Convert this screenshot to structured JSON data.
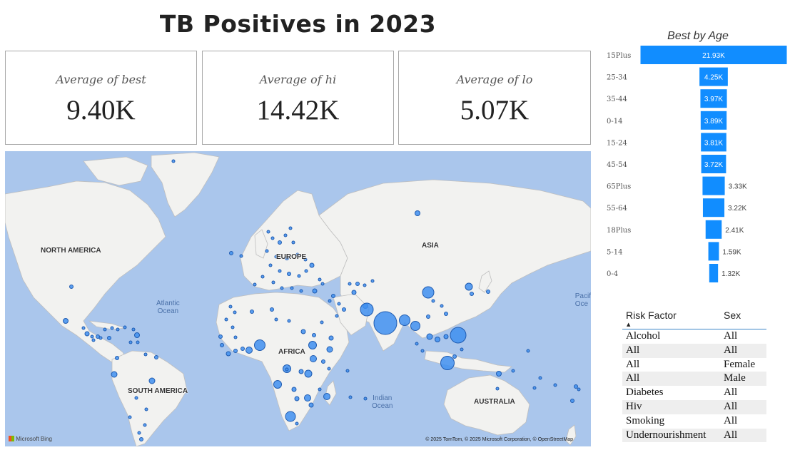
{
  "title": "TB Positives in 2023",
  "cards": [
    {
      "label": "Average of best",
      "value": "9.40K"
    },
    {
      "label": "Average of hi",
      "value": "14.42K"
    },
    {
      "label": "Average of lo",
      "value": "5.07K"
    }
  ],
  "map": {
    "continents": [
      "NORTH AMERICA",
      "EUROPE",
      "ASIA",
      "AFRICA",
      "SOUTH AMERICA",
      "AUSTRALIA"
    ],
    "oceans": [
      "Atlantic",
      "Ocean",
      "Indian",
      "Ocean",
      "Pacif",
      "Oce"
    ],
    "logo": "Microsoft Bing",
    "attribution": "© 2025 TomTom, © 2025 Microsoft Corporation, © OpenStreetMap",
    "bubble_color": "#3f8ff0"
  },
  "age_chart": {
    "title": "Best by Age",
    "bar_color": "#118dff",
    "categories": [
      "15Plus",
      "25-34",
      "35-44",
      "0-14",
      "15-24",
      "45-54",
      "65Plus",
      "55-64",
      "18Plus",
      "5-14",
      "0-4"
    ],
    "values": [
      21930,
      4250,
      3970,
      3890,
      3810,
      3720,
      3330,
      3220,
      2410,
      1590,
      1320
    ],
    "labels": [
      "21.93K",
      "4.25K",
      "3.97K",
      "3.89K",
      "3.81K",
      "3.72K",
      "3.33K",
      "3.22K",
      "2.41K",
      "1.59K",
      "1.32K"
    ]
  },
  "table": {
    "headers": [
      "Risk Factor",
      "Sex"
    ],
    "rows": [
      [
        "Alcohol",
        "All"
      ],
      [
        "All",
        "All"
      ],
      [
        "All",
        "Female"
      ],
      [
        "All",
        "Male"
      ],
      [
        "Diabetes",
        "All"
      ],
      [
        "Hiv",
        "All"
      ],
      [
        "Smoking",
        "All"
      ],
      [
        "Undernourishment",
        "All"
      ]
    ]
  }
}
